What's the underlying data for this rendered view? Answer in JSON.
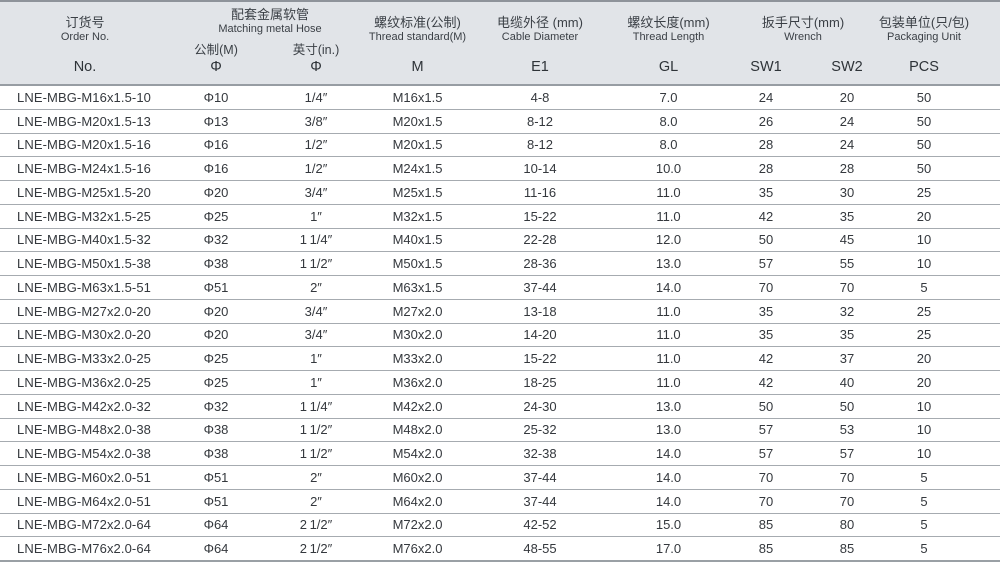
{
  "colors": {
    "header_bg": "#e1e4e8",
    "grid_line": "#a6abb0",
    "text": "#34383d"
  },
  "table": {
    "header": {
      "order": {
        "cn": "订货号",
        "en": "Order No.",
        "sym": "No."
      },
      "hose": {
        "cn": "配套金属软管",
        "en": "Matching metal Hose",
        "metric_label": "公制(M)",
        "inch_label": "英寸(in.)",
        "metric_sym": "Φ",
        "inch_sym": "Φ"
      },
      "thread_standard": {
        "cn": "螺纹标准(公制)",
        "en": "Thread standard(M)",
        "sym": "M"
      },
      "cable_diameter": {
        "cn": "电缆外径 (mm)",
        "en": "Cable Diameter",
        "sym": "E1"
      },
      "thread_length": {
        "cn": "螺纹长度(mm)",
        "en": "Thread Length",
        "sym": "GL"
      },
      "wrench": {
        "cn": "扳手尺寸(mm)",
        "en": "Wrench",
        "sw1_sym": "SW1",
        "sw2_sym": "SW2"
      },
      "packaging": {
        "cn": "包装单位(只/包)",
        "en": "Packaging Unit",
        "sym": "PCS"
      }
    },
    "rows": [
      [
        "LNE-MBG-M16x1.5-10",
        "Φ10",
        "1/4″",
        "M16x1.5",
        "4-8",
        "7.0",
        "24",
        "20",
        "50"
      ],
      [
        "LNE-MBG-M20x1.5-13",
        "Φ13",
        "3/8″",
        "M20x1.5",
        "8-12",
        "8.0",
        "26",
        "24",
        "50"
      ],
      [
        "LNE-MBG-M20x1.5-16",
        "Φ16",
        "1/2″",
        "M20x1.5",
        "8-12",
        "8.0",
        "28",
        "24",
        "50"
      ],
      [
        "LNE-MBG-M24x1.5-16",
        "Φ16",
        "1/2″",
        "M24x1.5",
        "10-14",
        "10.0",
        "28",
        "28",
        "50"
      ],
      [
        "LNE-MBG-M25x1.5-20",
        "Φ20",
        "3/4″",
        "M25x1.5",
        "11-16",
        "11.0",
        "35",
        "30",
        "25"
      ],
      [
        "LNE-MBG-M32x1.5-25",
        "Φ25",
        "1″",
        "M32x1.5",
        "15-22",
        "11.0",
        "42",
        "35",
        "20"
      ],
      [
        "LNE-MBG-M40x1.5-32",
        "Φ32",
        "1 1/4″",
        "M40x1.5",
        "22-28",
        "12.0",
        "50",
        "45",
        "10"
      ],
      [
        "LNE-MBG-M50x1.5-38",
        "Φ38",
        "1 1/2″",
        "M50x1.5",
        "28-36",
        "13.0",
        "57",
        "55",
        "10"
      ],
      [
        "LNE-MBG-M63x1.5-51",
        "Φ51",
        "2″",
        "M63x1.5",
        "37-44",
        "14.0",
        "70",
        "70",
        "5"
      ],
      [
        "LNE-MBG-M27x2.0-20",
        "Φ20",
        "3/4″",
        "M27x2.0",
        "13-18",
        "11.0",
        "35",
        "32",
        "25"
      ],
      [
        "LNE-MBG-M30x2.0-20",
        "Φ20",
        "3/4″",
        "M30x2.0",
        "14-20",
        "11.0",
        "35",
        "35",
        "25"
      ],
      [
        "LNE-MBG-M33x2.0-25",
        "Φ25",
        "1″",
        "M33x2.0",
        "15-22",
        "11.0",
        "42",
        "37",
        "20"
      ],
      [
        "LNE-MBG-M36x2.0-25",
        "Φ25",
        "1″",
        "M36x2.0",
        "18-25",
        "11.0",
        "42",
        "40",
        "20"
      ],
      [
        "LNE-MBG-M42x2.0-32",
        "Φ32",
        "1 1/4″",
        "M42x2.0",
        "24-30",
        "13.0",
        "50",
        "50",
        "10"
      ],
      [
        "LNE-MBG-M48x2.0-38",
        "Φ38",
        "1 1/2″",
        "M48x2.0",
        "25-32",
        "13.0",
        "57",
        "53",
        "10"
      ],
      [
        "LNE-MBG-M54x2.0-38",
        "Φ38",
        "1 1/2″",
        "M54x2.0",
        "32-38",
        "14.0",
        "57",
        "57",
        "10"
      ],
      [
        "LNE-MBG-M60x2.0-51",
        "Φ51",
        "2″",
        "M60x2.0",
        "37-44",
        "14.0",
        "70",
        "70",
        "5"
      ],
      [
        "LNE-MBG-M64x2.0-51",
        "Φ51",
        "2″",
        "M64x2.0",
        "37-44",
        "14.0",
        "70",
        "70",
        "5"
      ],
      [
        "LNE-MBG-M72x2.0-64",
        "Φ64",
        "2 1/2″",
        "M72x2.0",
        "42-52",
        "15.0",
        "85",
        "80",
        "5"
      ],
      [
        "LNE-MBG-M76x2.0-64",
        "Φ64",
        "2 1/2″",
        "M76x2.0",
        "48-55",
        "17.0",
        "85",
        "85",
        "5"
      ]
    ]
  }
}
